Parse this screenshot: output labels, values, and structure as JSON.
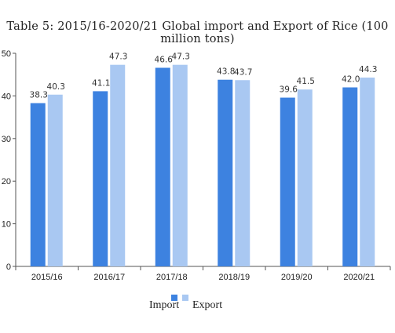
{
  "title": "Table 5: 2015/16-2020/21 Global import and Export of Rice (100 million tons)",
  "colors": {
    "import": "#3d82e0",
    "export": "#a9c8f2",
    "axis": "#555555"
  },
  "chart_data": {
    "type": "bar",
    "title": "Table 5: 2015/16-2020/21 Global import and Export of Rice (100 million tons)",
    "categories": [
      "2015/16",
      "2016/17",
      "2017/18",
      "2018/19",
      "2019/20",
      "2020/21"
    ],
    "series": [
      {
        "name": "Import",
        "values": [
          38.3,
          41.1,
          46.6,
          43.8,
          39.6,
          42.0
        ],
        "labels": [
          "38.3",
          "41.1",
          "46.6",
          "43.8",
          "39.6",
          "42.0"
        ]
      },
      {
        "name": "Export",
        "values": [
          40.3,
          47.3,
          47.3,
          43.7,
          41.5,
          44.3
        ],
        "labels": [
          "40.3",
          "47.3",
          "47.3",
          "43.7",
          "41.5",
          "44.3"
        ]
      }
    ],
    "ylim": [
      0,
      50
    ],
    "yticks": [
      0,
      10,
      20,
      30,
      40,
      50
    ],
    "xlabel": "",
    "ylabel": "",
    "grid": false,
    "legend": "bottom"
  }
}
